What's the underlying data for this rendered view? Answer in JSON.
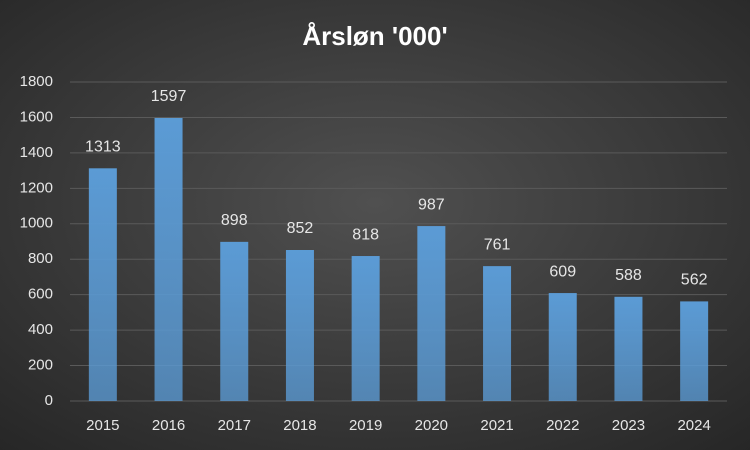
{
  "chart_data": {
    "type": "bar",
    "title": "Årsløn '000'",
    "categories": [
      "2015",
      "2016",
      "2017",
      "2018",
      "2019",
      "2020",
      "2021",
      "2022",
      "2023",
      "2024"
    ],
    "values": [
      1313,
      1597,
      898,
      852,
      818,
      987,
      761,
      609,
      588,
      562
    ],
    "color": "#5b9bd5",
    "ylim": [
      0,
      1800
    ],
    "yticks": [
      0,
      200,
      400,
      600,
      800,
      1000,
      1200,
      1400,
      1600,
      1800
    ],
    "grid": true
  }
}
